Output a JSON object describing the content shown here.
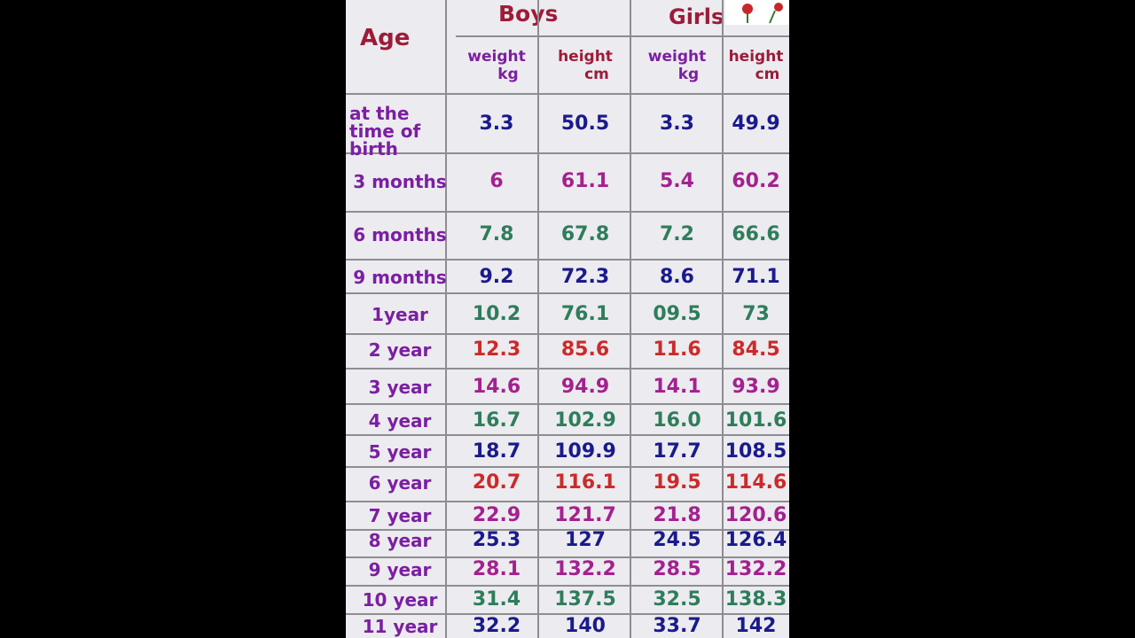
{
  "header": {
    "age": "Age",
    "boys": "Boys",
    "girls": "Girls",
    "columns": [
      {
        "label": "weight",
        "unit": "kg"
      },
      {
        "label": "height",
        "unit": "cm"
      },
      {
        "label": "weight",
        "unit": "kg"
      },
      {
        "label": "height",
        "unit": "cm"
      }
    ]
  },
  "table": {
    "rows": [
      {
        "age": "at the time of birth",
        "values": [
          "3.3",
          "50.5",
          "3.3",
          "49.9"
        ],
        "color": "#1a1a8c"
      },
      {
        "age": "3 months",
        "values": [
          "6",
          "61.1",
          "5.4",
          "60.2"
        ],
        "color": "#a3218f"
      },
      {
        "age": "6 months",
        "values": [
          "7.8",
          "67.8",
          "7.2",
          "66.6"
        ],
        "color": "#2e7d5b"
      },
      {
        "age": "9 months",
        "values": [
          "9.2",
          "72.3",
          "8.6",
          "71.1"
        ],
        "color": "#1a1a8c"
      },
      {
        "age": "1year",
        "values": [
          "10.2",
          "76.1",
          "09.5",
          "73"
        ],
        "color": "#2e7d5b"
      },
      {
        "age": "2 year",
        "values": [
          "12.3",
          "85.6",
          "11.6",
          "84.5"
        ],
        "color": "#cc2a2a"
      },
      {
        "age": "3 year",
        "values": [
          "14.6",
          "94.9",
          "14.1",
          "93.9"
        ],
        "color": "#a3218f"
      },
      {
        "age": "4 year",
        "values": [
          "16.7",
          "102.9",
          "16.0",
          "101.6"
        ],
        "color": "#2e7d5b"
      },
      {
        "age": "5 year",
        "values": [
          "18.7",
          "109.9",
          "17.7",
          "108.5"
        ],
        "color": "#1a1a8c"
      },
      {
        "age": "6 year",
        "values": [
          "20.7",
          "116.1",
          "19.5",
          "114.6"
        ],
        "color": "#cc2a2a"
      },
      {
        "age": "7 year",
        "values": [
          "22.9",
          "121.7",
          "21.8",
          "120.6"
        ],
        "color": "#a3218f"
      },
      {
        "age": "8 year",
        "values": [
          "25.3",
          "127",
          "24.5",
          "126.4"
        ],
        "color": "#1a1a8c"
      },
      {
        "age": "9 year",
        "values": [
          "28.1",
          "132.2",
          "28.5",
          "132.2"
        ],
        "color": "#a3218f"
      },
      {
        "age": "10 year",
        "values": [
          "31.4",
          "137.5",
          "32.5",
          "138.3"
        ],
        "color": "#2e7d5b"
      },
      {
        "age": "11 year",
        "values": [
          "32.2",
          "140",
          "33.7",
          "142"
        ],
        "color": "#1a1a8c"
      }
    ]
  }
}
